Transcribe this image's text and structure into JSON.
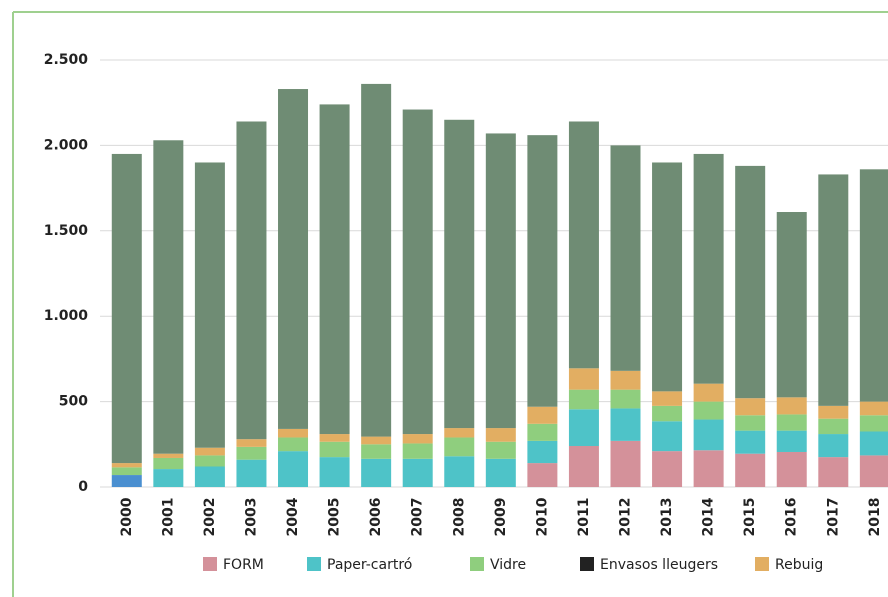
{
  "chart_data": {
    "type": "stacked-bar",
    "categories": [
      "2000",
      "2001",
      "2002",
      "2003",
      "2004",
      "2005",
      "2006",
      "2007",
      "2008",
      "2009",
      "2010",
      "2011",
      "2012",
      "2013",
      "2014",
      "2015",
      "2016",
      "2017",
      "2018"
    ],
    "series": [
      {
        "name": null,
        "color": "#4a8fd0",
        "values": [
          70,
          0,
          0,
          0,
          0,
          0,
          0,
          0,
          0,
          0,
          0,
          0,
          0,
          0,
          0,
          0,
          0,
          0,
          0
        ]
      },
      {
        "name": "FORM",
        "color": "#d4919a",
        "values": [
          0,
          0,
          0,
          0,
          0,
          0,
          0,
          0,
          0,
          0,
          140,
          240,
          270,
          210,
          215,
          195,
          205,
          175,
          185
        ]
      },
      {
        "name": "Paper-cartró",
        "color": "#4ec3c8",
        "values": [
          0,
          105,
          120,
          160,
          210,
          175,
          165,
          165,
          180,
          165,
          130,
          215,
          190,
          175,
          180,
          135,
          125,
          135,
          140
        ]
      },
      {
        "name": "Vidre",
        "color": "#8fce7e",
        "values": [
          45,
          65,
          65,
          75,
          80,
          90,
          85,
          90,
          110,
          100,
          100,
          115,
          110,
          90,
          105,
          90,
          95,
          90,
          95
        ]
      },
      {
        "name": "Envasos lleugers",
        "color": "#222222",
        "values": [
          0,
          0,
          0,
          0,
          0,
          0,
          0,
          0,
          0,
          0,
          0,
          0,
          0,
          0,
          0,
          0,
          0,
          0,
          0
        ]
      },
      {
        "name": "Rebuig",
        "color": "#e2ae62",
        "values": [
          25,
          25,
          45,
          45,
          50,
          45,
          45,
          55,
          55,
          80,
          100,
          125,
          110,
          85,
          105,
          100,
          100,
          75,
          80
        ]
      },
      {
        "name": null,
        "color": "#6f8c74",
        "values": [
          1810,
          1835,
          1670,
          1860,
          1990,
          1930,
          2065,
          1900,
          1805,
          1725,
          1590,
          1445,
          1320,
          1340,
          1345,
          1360,
          1085,
          1355,
          1360
        ]
      }
    ],
    "ylim": [
      0,
      2500
    ],
    "yticks": [
      0,
      500,
      {
        "value": 1000,
        "label": "1.000"
      },
      {
        "value": 1500,
        "label": "1.500"
      },
      {
        "value": 2000,
        "label": "2.000"
      },
      {
        "value": 2500,
        "label": "2.500"
      }
    ],
    "grid": true,
    "legend": "bottom"
  }
}
